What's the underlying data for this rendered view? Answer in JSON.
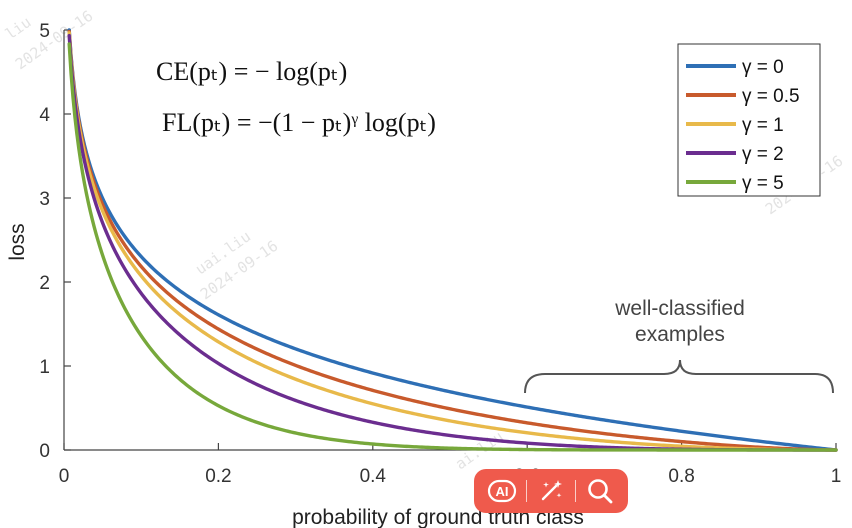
{
  "chart_data": {
    "type": "line",
    "xlabel": "probability of ground truth class",
    "ylabel": "loss",
    "xlim": [
      0,
      1
    ],
    "ylim": [
      0,
      5
    ],
    "xticks": [
      "0",
      "0.2",
      "0.4",
      "0.6",
      "0.8",
      "1"
    ],
    "yticks": [
      "0",
      "1",
      "2",
      "3",
      "4",
      "5"
    ],
    "grid": false,
    "legend_position": "top-right",
    "series": [
      {
        "name": "γ = 0",
        "gamma": 0,
        "color": "#2e6fb5",
        "x": [
          0.0067,
          0.02,
          0.05,
          0.1,
          0.2,
          0.3,
          0.4,
          0.5,
          0.6,
          0.7,
          0.8,
          0.9,
          1.0
        ],
        "y": [
          5.0,
          3.91,
          3.0,
          2.3,
          1.61,
          1.2,
          0.92,
          0.69,
          0.51,
          0.36,
          0.22,
          0.11,
          0.0
        ]
      },
      {
        "name": "γ = 0.5",
        "gamma": 0.5,
        "color": "#c85a2c",
        "x": [
          0.0067,
          0.02,
          0.05,
          0.1,
          0.2,
          0.3,
          0.4,
          0.5,
          0.6,
          0.7,
          0.8,
          0.9,
          1.0
        ],
        "y": [
          4.98,
          3.87,
          2.92,
          2.18,
          1.44,
          1.0,
          0.71,
          0.49,
          0.32,
          0.2,
          0.1,
          0.03,
          0.0
        ]
      },
      {
        "name": "γ = 1",
        "gamma": 1,
        "color": "#e8b94a",
        "x": [
          0.0067,
          0.02,
          0.05,
          0.1,
          0.2,
          0.3,
          0.4,
          0.5,
          0.6,
          0.7,
          0.8,
          0.9,
          1.0
        ],
        "y": [
          4.97,
          3.83,
          2.85,
          2.07,
          1.29,
          0.84,
          0.55,
          0.35,
          0.2,
          0.11,
          0.04,
          0.01,
          0.0
        ]
      },
      {
        "name": "γ = 2",
        "gamma": 2,
        "color": "#6b2d8f",
        "x": [
          0.0067,
          0.02,
          0.05,
          0.1,
          0.2,
          0.3,
          0.4,
          0.5,
          0.6,
          0.7,
          0.8,
          0.9,
          1.0
        ],
        "y": [
          4.93,
          3.76,
          2.71,
          1.86,
          1.03,
          0.59,
          0.33,
          0.17,
          0.08,
          0.03,
          0.01,
          0.0,
          0.0
        ]
      },
      {
        "name": "γ = 5",
        "gamma": 5,
        "color": "#77a83b",
        "x": [
          0.0067,
          0.02,
          0.05,
          0.1,
          0.2,
          0.3,
          0.4,
          0.5,
          0.6,
          0.7,
          0.8,
          0.9,
          1.0
        ],
        "y": [
          4.83,
          3.54,
          2.32,
          1.36,
          0.53,
          0.2,
          0.07,
          0.02,
          0.01,
          0.0,
          0.0,
          0.0,
          0.0
        ]
      }
    ],
    "formulas": {
      "ce": "CE(pₜ) = − log(pₜ)",
      "fl": "FL(pₜ) = −(1 − pₜ)ᵞ log(pₜ)"
    },
    "annotation": {
      "lines": [
        "well-classified",
        "examples"
      ],
      "x_range": [
        0.6,
        1.0
      ]
    }
  },
  "watermarks": [
    "liu",
    "2024-09-16",
    "uai.liu",
    "2024-09-16",
    "liu",
    "2024-09-16",
    "ai.liu"
  ],
  "toolbar": {
    "ai_icon": "ai-icon",
    "magic_icon": "magic-wand-icon",
    "search_icon": "search-icon",
    "ai_label": "AI"
  }
}
